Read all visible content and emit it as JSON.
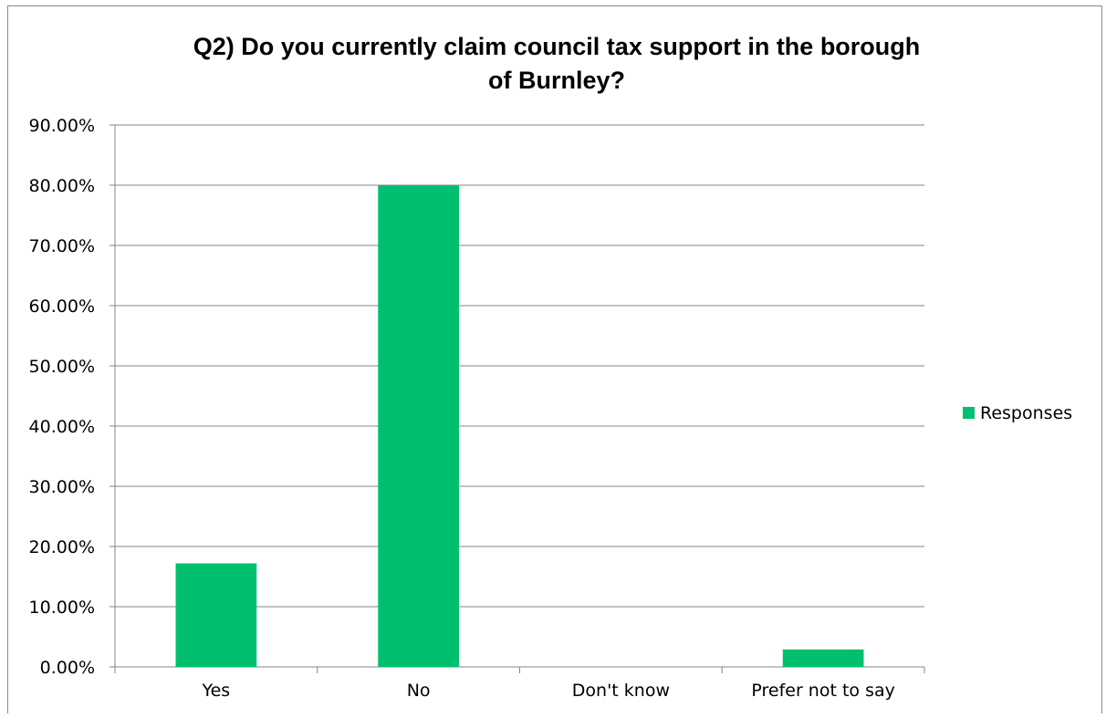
{
  "chart_data": {
    "type": "bar",
    "title_lines": [
      "Q2) Do you currently claim council tax support in the borough",
      "of Burnley?"
    ],
    "categories": [
      "Yes",
      "No",
      "Don't know",
      "Prefer not to say"
    ],
    "series": [
      {
        "name": "Responses",
        "values": [
          17.2,
          80.0,
          0.0,
          2.9
        ],
        "color": "#00c070"
      }
    ],
    "ylim": [
      0,
      90
    ],
    "yticks": [
      "0.00%",
      "10.00%",
      "20.00%",
      "30.00%",
      "40.00%",
      "50.00%",
      "60.00%",
      "70.00%",
      "80.00%",
      "90.00%"
    ],
    "grid": true,
    "legend_position": "right"
  }
}
